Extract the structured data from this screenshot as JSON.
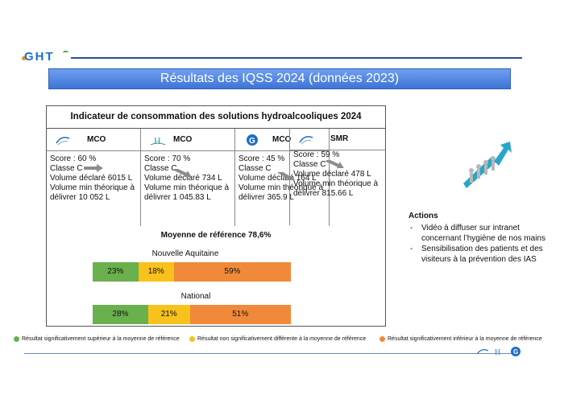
{
  "header": {
    "logo_text": "GHT",
    "title": "Résultats des IQSS 2024 (données 2023)"
  },
  "indicator": {
    "title": "Indicateur de consommation des solutions hydroalcooliques 2024",
    "columns": [
      {
        "label": "MCO",
        "logo": "ght-swirl-logo",
        "score": "Score : 60 %",
        "classe": "Classe C",
        "volume": "Volume déclaré 6015 L",
        "min_line1": "Volume min théorique à",
        "min_line2": "délivrer 10 052 L"
      },
      {
        "label": "MCO",
        "logo": "hospital-h-logo",
        "score": "Score : 70 %",
        "classe": "Classe C",
        "volume": "Volume déclaré 734 L",
        "min_line1": "Volume min théorique à",
        "min_line2": "délivrer 1 045.83 L"
      },
      {
        "label": "MCO",
        "logo": "hospital-g-logo",
        "score": "Score : 45 %",
        "classe": "Classe C",
        "volume": "Volume déclaré 164 L",
        "min_line1": "Volume min théorique à",
        "min_line2": "délivrer 365.9 L"
      },
      {
        "label": "SMR",
        "logo": "ght-swirl-logo",
        "score": "Score : 59 %",
        "classe": "Classe C",
        "volume": "Volume déclaré 478 L",
        "min_line1": "Volume min théorique à",
        "min_line2": "délivrer 815.66 L"
      }
    ]
  },
  "reference": {
    "moyenne": "Moyenne de référence 78,6%"
  },
  "chart_data": [
    {
      "type": "bar",
      "title": "Nouvelle Aquitaine",
      "stacked": true,
      "series": [
        {
          "name": "Résultat significativement supérieur à la moyenne de référence",
          "value": 23,
          "label": "23%",
          "color": "#6ab04c"
        },
        {
          "name": "Résultat non significativement différente à la moyenne de référence",
          "value": 18,
          "label": "18%",
          "color": "#f9c11b"
        },
        {
          "name": "Résultat significativement inférieur à la moyenne de référence",
          "value": 59,
          "label": "59%",
          "color": "#f08a3a"
        }
      ]
    },
    {
      "type": "bar",
      "title": "National",
      "stacked": true,
      "series": [
        {
          "name": "Résultat significativement supérieur à la moyenne de référence",
          "value": 28,
          "label": "28%",
          "color": "#6ab04c"
        },
        {
          "name": "Résultat non significativement différente à la moyenne de référence",
          "value": 21,
          "label": "21%",
          "color": "#f9c11b"
        },
        {
          "name": "Résultat significativement inférieur à la moyenne de référence",
          "value": 51,
          "label": "51%",
          "color": "#f08a3a"
        }
      ]
    }
  ],
  "legend": {
    "green": "Résultat significativement supérieur à la moyenne de référence",
    "yellow": "Résultat non significativement différente à la moyenne de référence",
    "orange": "Résultat significativement inférieur à la moyenne de référence"
  },
  "actions": {
    "title": "Actions",
    "items": [
      "Vidéo à diffuser sur intranet concernant l’hygiène de nos mains",
      "Sensibilisation des patients et des visiteurs à la prévention des IAS"
    ]
  }
}
